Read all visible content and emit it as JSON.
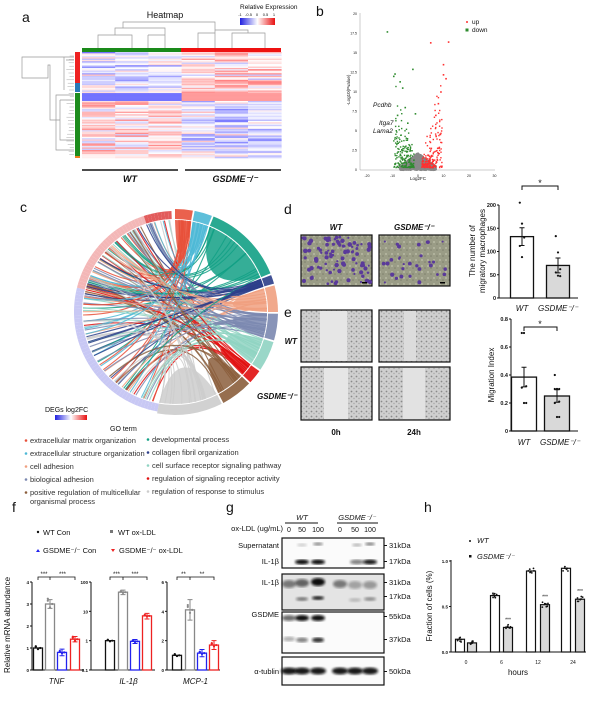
{
  "panels": {
    "a": "a",
    "b": "b",
    "c": "c",
    "d": "d",
    "e": "e",
    "f": "f",
    "g": "g",
    "h": "h"
  },
  "colors": {
    "wt_group": "#1a8a1a",
    "ko_group": "#ee1111",
    "up": "#ff3030",
    "down": "#2e8b2e",
    "ns": "#888888",
    "bar_grey": "#d9d9d9"
  },
  "chart_data": [
    {
      "id": "heatmap",
      "type": "heatmap",
      "title": "Heatmap",
      "legend_title": "Relative Expression",
      "scale_ticks": [
        "-1",
        "-0.5",
        "0",
        "0.5",
        "1"
      ],
      "groups": [
        "WT",
        "GSDME⁻/⁻"
      ],
      "samples_per_group": 3
    },
    {
      "id": "volcano",
      "type": "scatter",
      "xlabel": "Log2FC",
      "ylabel": "-Log10(Pvalue)",
      "xlim": [
        -20,
        30
      ],
      "ylim": [
        0,
        20
      ],
      "xticks": [
        -20,
        -10,
        0,
        10,
        20,
        30
      ],
      "yticks": [
        0,
        2.5,
        5,
        7.5,
        10,
        12.5,
        15,
        17.5,
        20
      ],
      "legend": [
        "up",
        "down"
      ],
      "labeled_genes": [
        "Pcdhb",
        "Itga7",
        "Lama2"
      ]
    },
    {
      "id": "chord",
      "type": "chord",
      "scale_title": "DEGs log2FC",
      "legend_title": "GO term",
      "terms": [
        {
          "name": "extracellular matrix organization",
          "color": "#e8503a"
        },
        {
          "name": "extracellular structure organization",
          "color": "#4db8d6"
        },
        {
          "name": "cell adhesion",
          "color": "#f0a080"
        },
        {
          "name": "biological adhesion",
          "color": "#7b88b0"
        },
        {
          "name": "positive regulation of multicellular organismal process",
          "color": "#8b5e3c"
        },
        {
          "name": "developmental process",
          "color": "#12a085"
        },
        {
          "name": "collagen fibril organization",
          "color": "#2c3e8a"
        },
        {
          "name": "cell surface receptor signaling pathway",
          "color": "#8fd3c2"
        },
        {
          "name": "regulation of signaling receptor activity",
          "color": "#e01010"
        },
        {
          "name": "regulation of response to stimulus",
          "color": "#cccccc"
        }
      ]
    },
    {
      "id": "transwell",
      "type": "bar",
      "ylabel": [
        "The number of",
        "migratory macrophages"
      ],
      "categories": [
        "WT",
        "GSDME⁻/⁻"
      ],
      "values": [
        132,
        70
      ],
      "errors": [
        19,
        16
      ],
      "points": [
        [
          205,
          160,
          130,
          112,
          88
        ],
        [
          133,
          98,
          62,
          55,
          48,
          47
        ]
      ],
      "ylim": [
        0,
        200
      ],
      "yticks": [
        0,
        50,
        100,
        150,
        200
      ],
      "significance": [
        "*"
      ]
    },
    {
      "id": "migration",
      "type": "bar",
      "ylabel": [
        "Migration Index"
      ],
      "categories": [
        "WT",
        "GSDME⁻/⁻"
      ],
      "values": [
        0.385,
        0.25
      ],
      "errors": [
        0.07,
        0.045
      ],
      "points": [
        [
          0.7,
          0.7,
          0.32,
          0.31,
          0.2,
          0.2
        ],
        [
          0.4,
          0.3,
          0.3,
          0.3,
          0.3,
          0.21,
          0.2,
          0.1,
          0.1
        ]
      ],
      "ylim": [
        0,
        0.8
      ],
      "yticks": [
        0,
        0.2,
        0.4,
        0.6,
        0.8
      ],
      "significance": [
        "*"
      ]
    },
    {
      "id": "tnf",
      "type": "bar",
      "xlabel": "TNF",
      "ylabel": "Relative mRNA abundance",
      "categories": [
        "WT Con",
        "WT ox-LDL",
        "GSDME⁻/⁻ Con",
        "GSDME⁻/⁻ ox-LDL"
      ],
      "values": [
        1,
        3.0,
        0.8,
        1.4
      ],
      "errors": [
        0,
        0.2,
        0.15,
        0.12
      ],
      "ylim": [
        0,
        4
      ],
      "yticks": [
        "0",
        "1",
        "2",
        "3",
        "4"
      ],
      "scale": "linear",
      "significance": [
        "***",
        "***"
      ]
    },
    {
      "id": "il1b",
      "type": "bar",
      "xlabel": "IL-1β",
      "categories": [
        "WT Con",
        "WT ox-LDL",
        "GSDME⁻/⁻ Con",
        "GSDME⁻/⁻ ox-LDL"
      ],
      "values": [
        1,
        45,
        0.95,
        7
      ],
      "errors": [
        0,
        8,
        0.15,
        1.5
      ],
      "ylim": [
        0.1,
        100
      ],
      "yticks": [
        "0.1",
        "1",
        "10",
        "100"
      ],
      "scale": "log",
      "significance": [
        "***",
        "***"
      ]
    },
    {
      "id": "mcp1",
      "type": "bar",
      "xlabel": "MCP-1",
      "categories": [
        "WT Con",
        "WT ox-LDL",
        "GSDME⁻/⁻ Con",
        "GSDME⁻/⁻ ox-LDL"
      ],
      "values": [
        1,
        4.1,
        1.15,
        1.7
      ],
      "errors": [
        0,
        0.7,
        0.25,
        0.3
      ],
      "ylim": [
        0,
        6
      ],
      "yticks": [
        "0",
        "2",
        "4",
        "6"
      ],
      "scale": "linear",
      "significance": [
        "**",
        "**"
      ]
    },
    {
      "id": "fraction",
      "type": "bar",
      "xlabel": "hours",
      "ylabel": "Fraction of cells (%)",
      "categories": [
        "0",
        "6",
        "12",
        "24"
      ],
      "series": [
        {
          "name": "WT",
          "values": [
            0.14,
            0.62,
            0.89,
            0.92
          ]
        },
        {
          "name": "GSDME⁻/⁻",
          "values": [
            0.1,
            0.27,
            0.52,
            0.58
          ]
        }
      ],
      "ylim": [
        0,
        1
      ],
      "yticks": [
        "0.0",
        "0.5",
        "1.0"
      ],
      "significance": [
        "",
        "***",
        "***",
        "***"
      ]
    }
  ],
  "panel_d": {
    "col_labels": [
      "WT",
      "GSDME⁻/⁻"
    ]
  },
  "panel_e": {
    "row_labels": [
      "WT",
      "GSDME⁻/⁻"
    ],
    "col_labels": [
      "0h",
      "24h"
    ]
  },
  "panel_f": {
    "legend": [
      "WT Con",
      "WT ox-LDL",
      "GSDME⁻/⁻ Con",
      "GSDME⁻/⁻ ox-LDL"
    ]
  },
  "panel_g": {
    "treatment_label": "ox-LDL (ug/mL)",
    "groups": [
      "WT",
      "GSDME⁻/⁻"
    ],
    "doses": [
      "0",
      "50",
      "100",
      "0",
      "50",
      "100"
    ],
    "blot_labels": [
      "Supernatant",
      "IL-1β",
      "IL-1β",
      "GSDME",
      "α-tublin"
    ],
    "markers": [
      "31kDa",
      "17kDa",
      "31kDa",
      "17kDa",
      "55kDa",
      "37kDa",
      "50kDa"
    ]
  }
}
